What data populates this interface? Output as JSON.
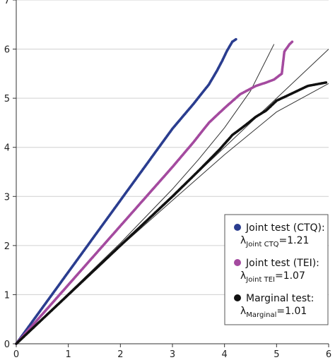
{
  "chart_data": {
    "type": "scatter",
    "title": "",
    "xlabel": "",
    "ylabel": "",
    "xlim": [
      0,
      6
    ],
    "ylim": [
      0,
      7
    ],
    "x_ticks": [
      "0",
      "1",
      "2",
      "3",
      "4",
      "5",
      "6"
    ],
    "y_ticks": [
      "0",
      "1",
      "2",
      "3",
      "4",
      "5",
      "6",
      "7"
    ],
    "grid": "horizontal",
    "legend_position": "bottom-right",
    "series": [
      {
        "key": "ctq",
        "color": "#2a3d8f",
        "legend_line1": "Joint test (CTQ):",
        "lambda_symbol": "λ",
        "lambda_sub": "Joint CTQ",
        "lambda_value": "=1.21",
        "points": [
          [
            0,
            0
          ],
          [
            0.5,
            0.73
          ],
          [
            1,
            1.46
          ],
          [
            1.5,
            2.19
          ],
          [
            2,
            2.92
          ],
          [
            2.5,
            3.65
          ],
          [
            3,
            4.38
          ],
          [
            3.4,
            4.88
          ],
          [
            3.7,
            5.28
          ],
          [
            3.85,
            5.55
          ],
          [
            3.95,
            5.75
          ],
          [
            4.05,
            5.97
          ],
          [
            4.15,
            6.15
          ],
          [
            4.22,
            6.2
          ]
        ]
      },
      {
        "key": "tei",
        "color": "#a44a9f",
        "legend_line1": "Joint test (TEI):",
        "lambda_symbol": "λ",
        "lambda_sub": "Joint TEI",
        "lambda_value": "=1.07",
        "points": [
          [
            0,
            0
          ],
          [
            0.5,
            0.6
          ],
          [
            1,
            1.2
          ],
          [
            1.5,
            1.8
          ],
          [
            2,
            2.4
          ],
          [
            2.5,
            3.0
          ],
          [
            3,
            3.6
          ],
          [
            3.4,
            4.1
          ],
          [
            3.7,
            4.5
          ],
          [
            4.0,
            4.8
          ],
          [
            4.3,
            5.08
          ],
          [
            4.6,
            5.25
          ],
          [
            4.8,
            5.32
          ],
          [
            4.95,
            5.38
          ],
          [
            5.1,
            5.5
          ],
          [
            5.15,
            5.95
          ],
          [
            5.25,
            6.1
          ],
          [
            5.3,
            6.15
          ]
        ]
      },
      {
        "key": "marginal",
        "color": "#111111",
        "legend_line1": "Marginal test:",
        "lambda_symbol": "λ",
        "lambda_sub": "Marginal",
        "lambda_value": "=1.01",
        "points": [
          [
            0,
            0
          ],
          [
            0.5,
            0.5
          ],
          [
            1,
            1.0
          ],
          [
            1.5,
            1.5
          ],
          [
            2,
            2.0
          ],
          [
            2.5,
            2.5
          ],
          [
            3,
            3.0
          ],
          [
            3.5,
            3.52
          ],
          [
            3.9,
            3.95
          ],
          [
            4.15,
            4.25
          ],
          [
            4.4,
            4.45
          ],
          [
            4.6,
            4.62
          ],
          [
            4.8,
            4.75
          ],
          [
            5.0,
            4.95
          ],
          [
            5.3,
            5.1
          ],
          [
            5.6,
            5.25
          ],
          [
            5.95,
            5.32
          ]
        ]
      }
    ],
    "reference_lines": [
      {
        "name": "expected",
        "points": [
          [
            0,
            0
          ],
          [
            6,
            6
          ]
        ]
      },
      {
        "name": "upper-ci",
        "points": [
          [
            0,
            0
          ],
          [
            2,
            2.05
          ],
          [
            3,
            3.15
          ],
          [
            3.5,
            3.75
          ],
          [
            4,
            4.4
          ],
          [
            4.5,
            5.15
          ],
          [
            4.95,
            6.1
          ]
        ]
      },
      {
        "name": "lower-ci",
        "points": [
          [
            0,
            0
          ],
          [
            2,
            1.98
          ],
          [
            3,
            2.92
          ],
          [
            4,
            3.85
          ],
          [
            5,
            4.72
          ],
          [
            6,
            5.3
          ]
        ]
      }
    ]
  }
}
